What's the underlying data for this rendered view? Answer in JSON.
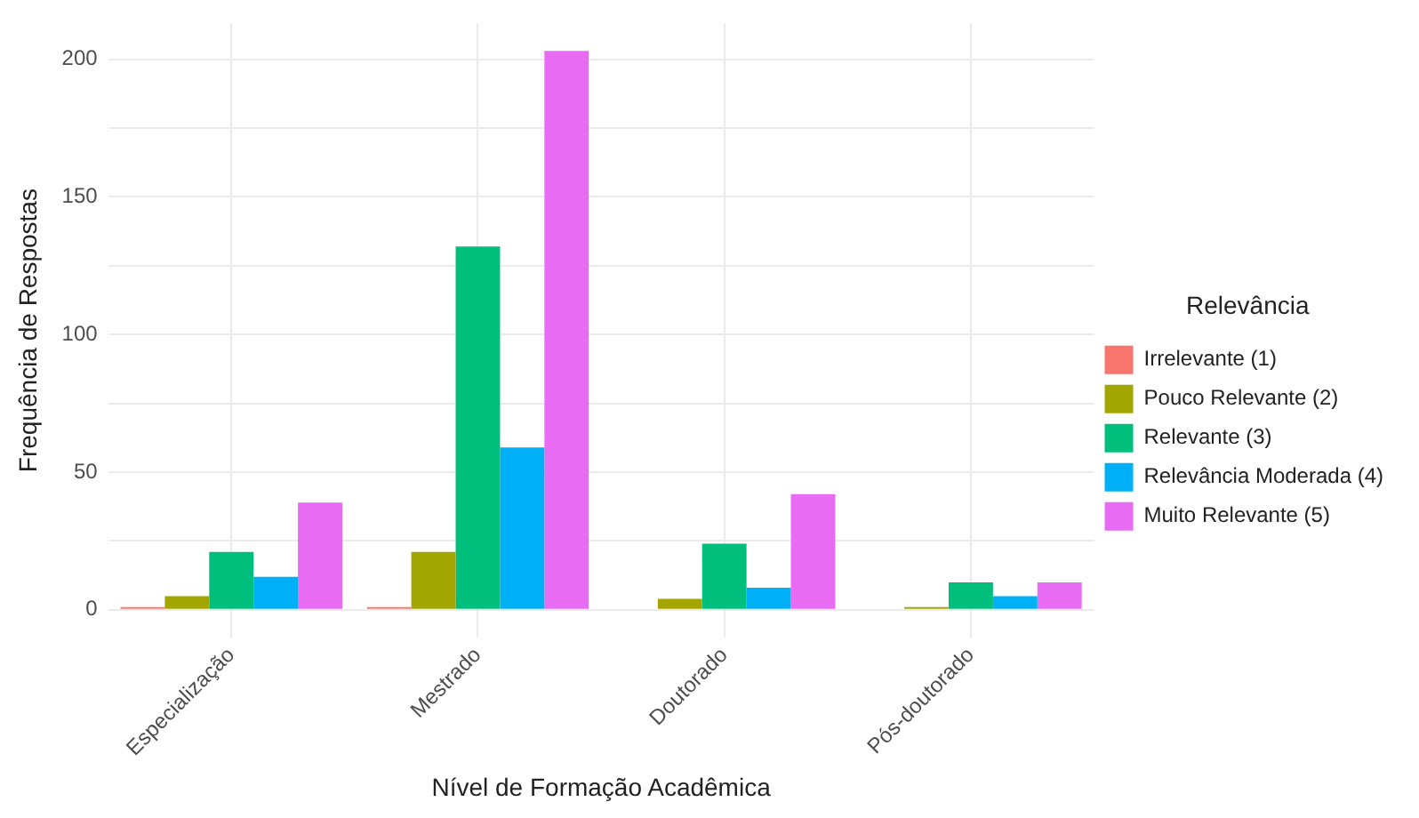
{
  "chart_data": {
    "type": "bar",
    "xlabel": "Nível de Formação Acadêmica",
    "ylabel": "Frequência de Respostas",
    "legend_title": "Relevância",
    "categories": [
      "Especialização",
      "Mestrado",
      "Doutorado",
      "Pós-doutorado"
    ],
    "series": [
      {
        "name": "Irrelevante (1)",
        "color": "#f8766d",
        "values": [
          1,
          1,
          null,
          null
        ]
      },
      {
        "name": "Pouco Relevante (2)",
        "color": "#a3a500",
        "values": [
          5,
          21,
          4,
          1
        ]
      },
      {
        "name": "Relevante (3)",
        "color": "#00bf7d",
        "values": [
          21,
          132,
          24,
          10
        ]
      },
      {
        "name": "Relevância Moderada (4)",
        "color": "#00b0f6",
        "values": [
          12,
          59,
          8,
          5
        ]
      },
      {
        "name": "Muito Relevante (5)",
        "color": "#e76bf3",
        "values": [
          39,
          203,
          42,
          10
        ]
      }
    ],
    "ylim": [
      -10,
      213
    ],
    "yticks": [
      0,
      {
        "value": 25,
        "label": null
      },
      50,
      {
        "value": 75,
        "label": null
      },
      100,
      {
        "value": 125,
        "label": null
      },
      150,
      {
        "value": 175,
        "label": null
      },
      200
    ],
    "grid": true,
    "legend": "right"
  }
}
